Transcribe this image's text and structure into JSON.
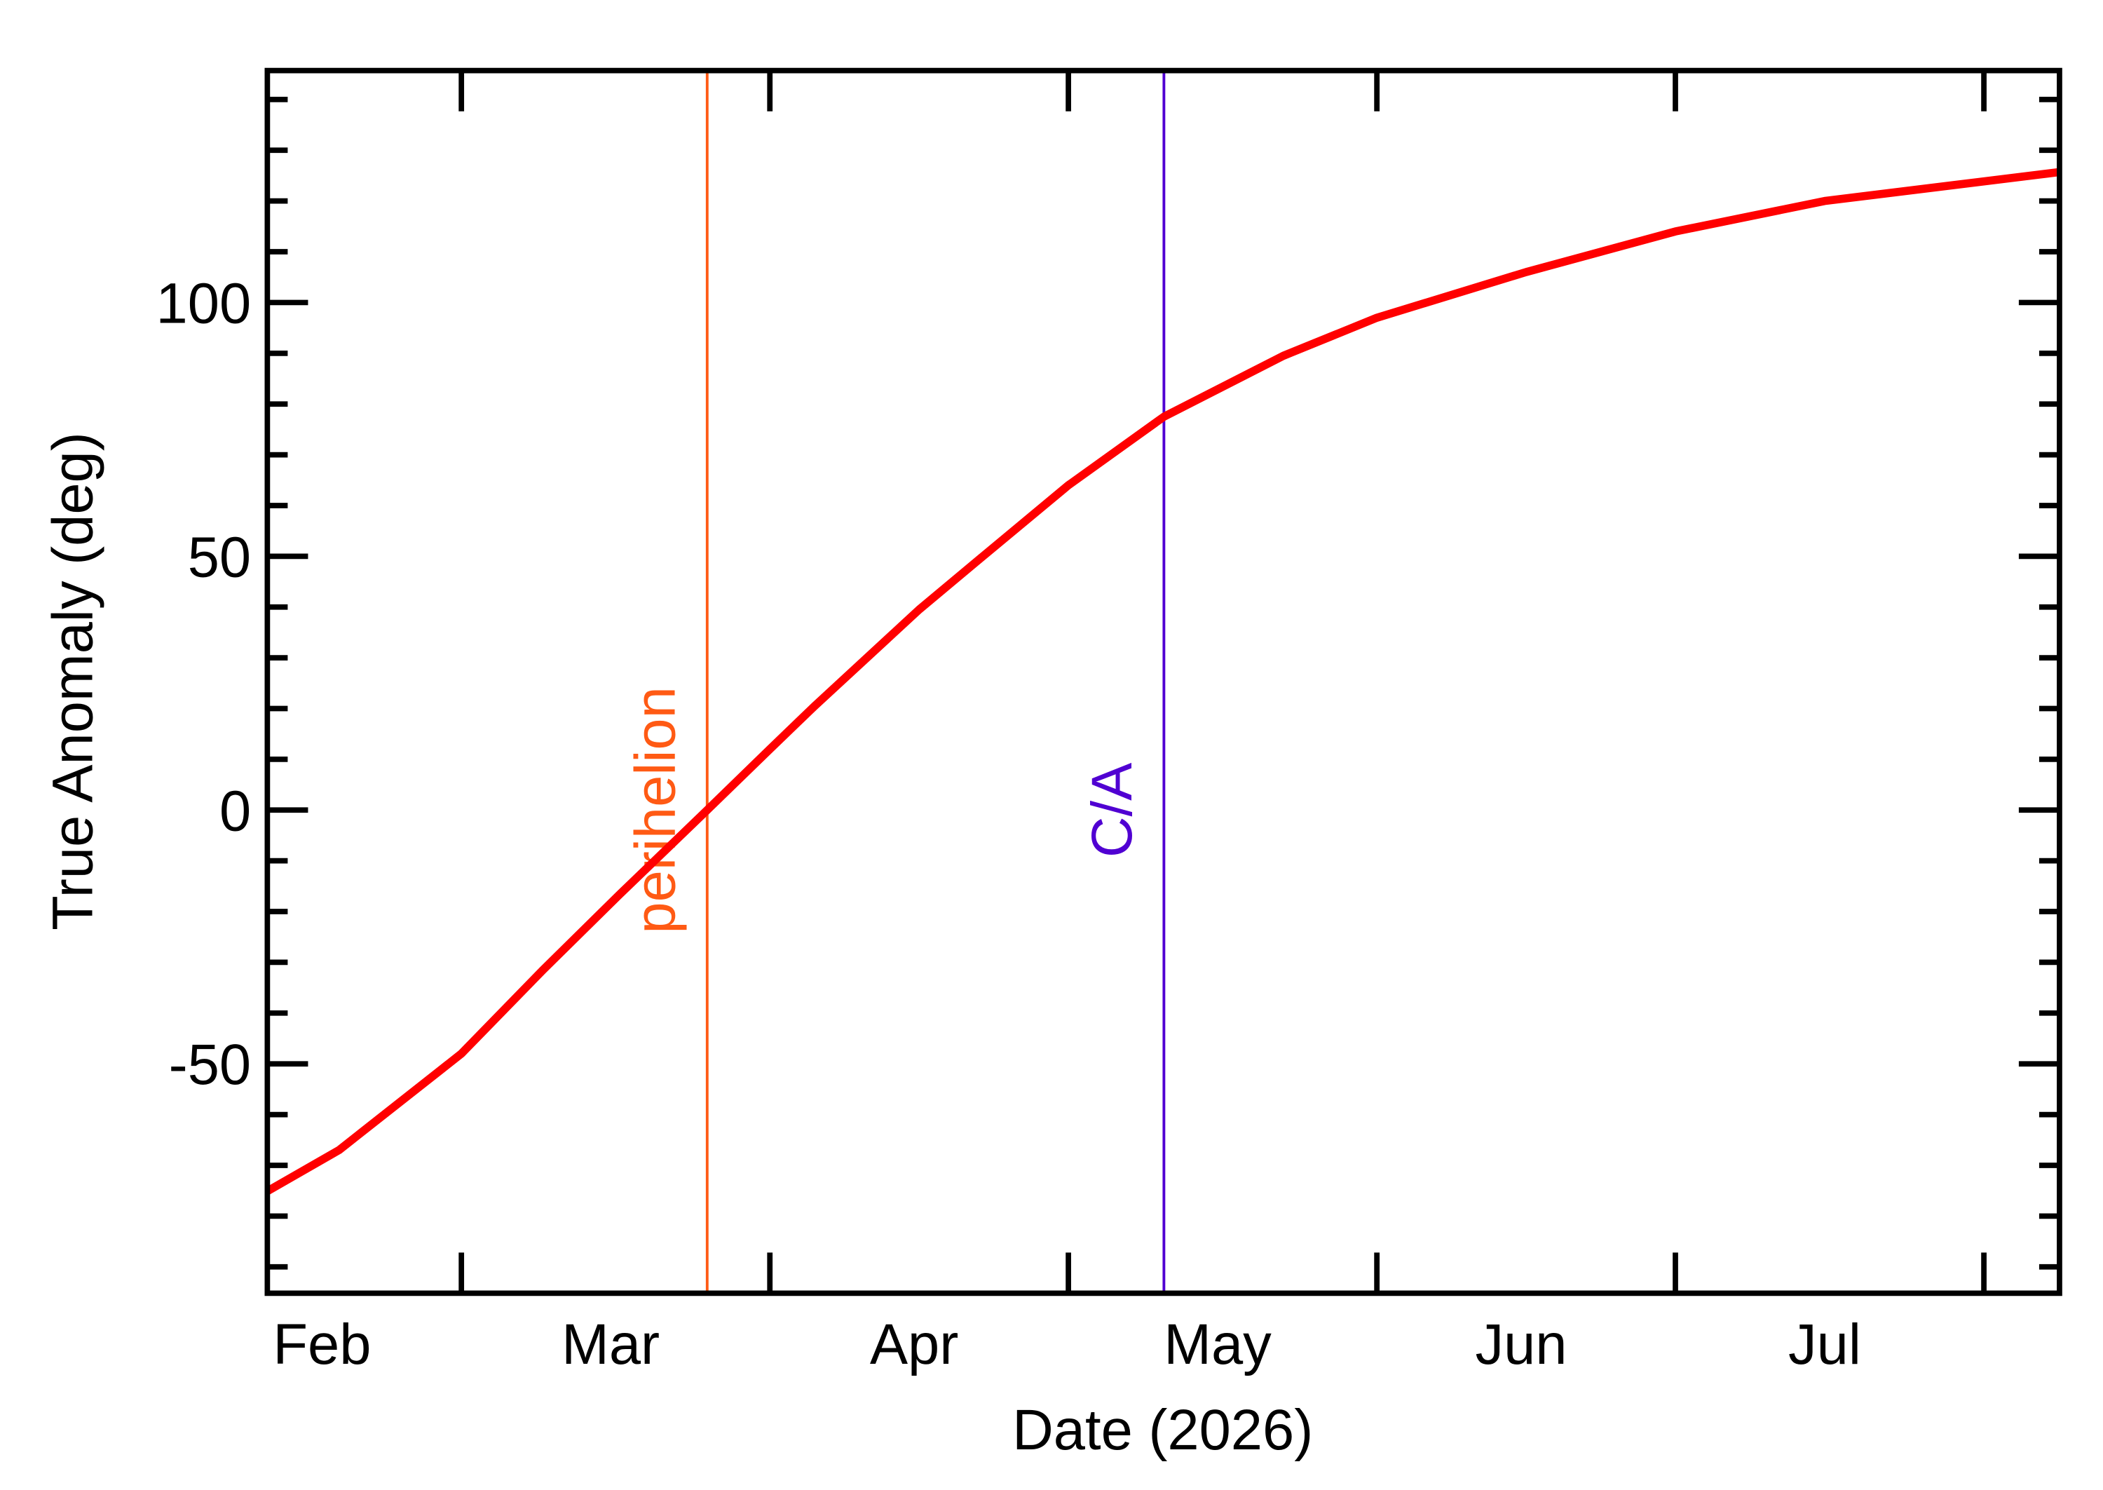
{
  "chart_data": {
    "type": "line",
    "xlabel": "Date (2026)",
    "ylabel": "True Anomaly (deg)",
    "x": [
      39.5,
      46.7,
      59,
      67.2,
      74.7,
      83.7,
      90,
      94.5,
      105,
      110.8,
      120,
      129.6,
      141.6,
      151,
      166,
      181,
      196,
      219.6
    ],
    "values": [
      -75.1,
      -67,
      -48,
      -31.5,
      -17,
      0,
      12,
      20.5,
      39.5,
      49,
      64,
      77.5,
      89.5,
      97,
      106,
      114,
      120,
      125.7
    ],
    "color": "#ff0000",
    "xlim": [
      39.5,
      219.6
    ],
    "ylim": [
      -95.2,
      145.7
    ],
    "xticks": [
      {
        "value": 45,
        "label": "Feb"
      },
      {
        "value": 74,
        "label": "Mar"
      },
      {
        "value": 104.5,
        "label": "Apr"
      },
      {
        "value": 135,
        "label": "May"
      },
      {
        "value": 165.5,
        "label": "Jun"
      },
      {
        "value": 196,
        "label": "Jul"
      }
    ],
    "xminorticks": [
      59,
      90,
      120,
      151,
      181,
      212
    ],
    "yticks": [
      -50,
      0,
      50,
      100
    ],
    "yminorticks": [
      -90,
      -80,
      -70,
      -60,
      -40,
      -30,
      -20,
      -10,
      10,
      20,
      30,
      40,
      60,
      70,
      80,
      90,
      110,
      120,
      130,
      140
    ],
    "annotations": [
      {
        "text": "perihelion",
        "x": 83.7,
        "color": "#ff5a14"
      },
      {
        "text": "C/A",
        "x": 129.6,
        "color": "#5000d2"
      }
    ]
  }
}
